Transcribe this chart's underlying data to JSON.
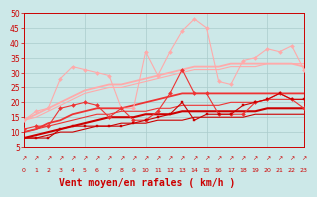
{
  "title": "",
  "xlabel": "Vent moyen/en rafales ( km/h )",
  "background_color": "#cce8e8",
  "grid_color": "#aacccc",
  "x": [
    0,
    1,
    2,
    3,
    4,
    5,
    6,
    7,
    8,
    9,
    10,
    11,
    12,
    13,
    14,
    15,
    16,
    17,
    18,
    19,
    20,
    21,
    22,
    23
  ],
  "ylim": [
    5,
    50
  ],
  "xlim": [
    0,
    23
  ],
  "yticks": [
    5,
    10,
    15,
    20,
    25,
    30,
    35,
    40,
    45,
    50
  ],
  "series": [
    {
      "name": "line_dark_scatter",
      "color": "#cc0000",
      "linewidth": 0.8,
      "marker": "s",
      "markersize": 2.0,
      "y": [
        8,
        8,
        8,
        11,
        12,
        12,
        12,
        12,
        12,
        13,
        14,
        15,
        16,
        20,
        14,
        16,
        16,
        16,
        19,
        20,
        21,
        23,
        21,
        21
      ]
    },
    {
      "name": "line_dark_upper",
      "color": "#cc0000",
      "linewidth": 1.5,
      "marker": null,
      "y": [
        8,
        9,
        10,
        11,
        12,
        13,
        14,
        15,
        15,
        15,
        16,
        16,
        16,
        17,
        17,
        17,
        17,
        17,
        17,
        17,
        18,
        18,
        18,
        18
      ]
    },
    {
      "name": "line_dark_lower",
      "color": "#cc0000",
      "linewidth": 0.8,
      "marker": null,
      "y": [
        8,
        8,
        9,
        10,
        10,
        11,
        12,
        12,
        13,
        13,
        13,
        14,
        14,
        14,
        15,
        15,
        15,
        15,
        15,
        16,
        16,
        16,
        16,
        16
      ]
    },
    {
      "name": "line_med_scatter",
      "color": "#ee3333",
      "linewidth": 0.8,
      "marker": "D",
      "markersize": 2.0,
      "y": [
        11,
        12,
        12,
        18,
        19,
        20,
        19,
        15,
        18,
        14,
        14,
        17,
        23,
        31,
        23,
        23,
        16,
        16,
        16,
        20,
        21,
        23,
        21,
        18
      ]
    },
    {
      "name": "line_med_upper",
      "color": "#ee3333",
      "linewidth": 1.3,
      "marker": null,
      "y": [
        10,
        11,
        13,
        14,
        16,
        17,
        18,
        18,
        18,
        19,
        20,
        21,
        22,
        23,
        23,
        23,
        23,
        23,
        23,
        23,
        23,
        23,
        23,
        23
      ]
    },
    {
      "name": "line_med_lower",
      "color": "#ee3333",
      "linewidth": 0.8,
      "marker": null,
      "y": [
        10,
        11,
        12,
        13,
        14,
        15,
        16,
        16,
        17,
        17,
        17,
        18,
        18,
        19,
        19,
        19,
        19,
        20,
        20,
        20,
        21,
        21,
        21,
        21
      ]
    },
    {
      "name": "line_light_scatter",
      "color": "#ffaaaa",
      "linewidth": 0.8,
      "marker": "D",
      "markersize": 2.0,
      "y": [
        14,
        17,
        18,
        28,
        32,
        31,
        30,
        29,
        18,
        18,
        37,
        29,
        37,
        44,
        48,
        45,
        27,
        26,
        34,
        35,
        38,
        37,
        39,
        31
      ]
    },
    {
      "name": "line_light_upper",
      "color": "#ffaaaa",
      "linewidth": 1.3,
      "marker": null,
      "y": [
        14,
        16,
        18,
        20,
        22,
        24,
        25,
        26,
        26,
        27,
        28,
        29,
        30,
        31,
        32,
        32,
        32,
        33,
        33,
        33,
        33,
        33,
        33,
        32
      ]
    },
    {
      "name": "line_light_lower",
      "color": "#ffaaaa",
      "linewidth": 0.8,
      "marker": null,
      "y": [
        14,
        15,
        17,
        19,
        21,
        23,
        24,
        25,
        25,
        26,
        27,
        28,
        29,
        30,
        31,
        31,
        31,
        32,
        32,
        32,
        33,
        33,
        33,
        33
      ]
    }
  ],
  "arrow_char": "↗",
  "arrow_color": "#cc0000",
  "text_color": "#cc0000",
  "xlabel_fontsize": 7,
  "tick_fontsize": 5.5,
  "arrow_fontsize": 4.5,
  "xtick_fontsize": 4.5,
  "fig_bg": "#cce8e8"
}
